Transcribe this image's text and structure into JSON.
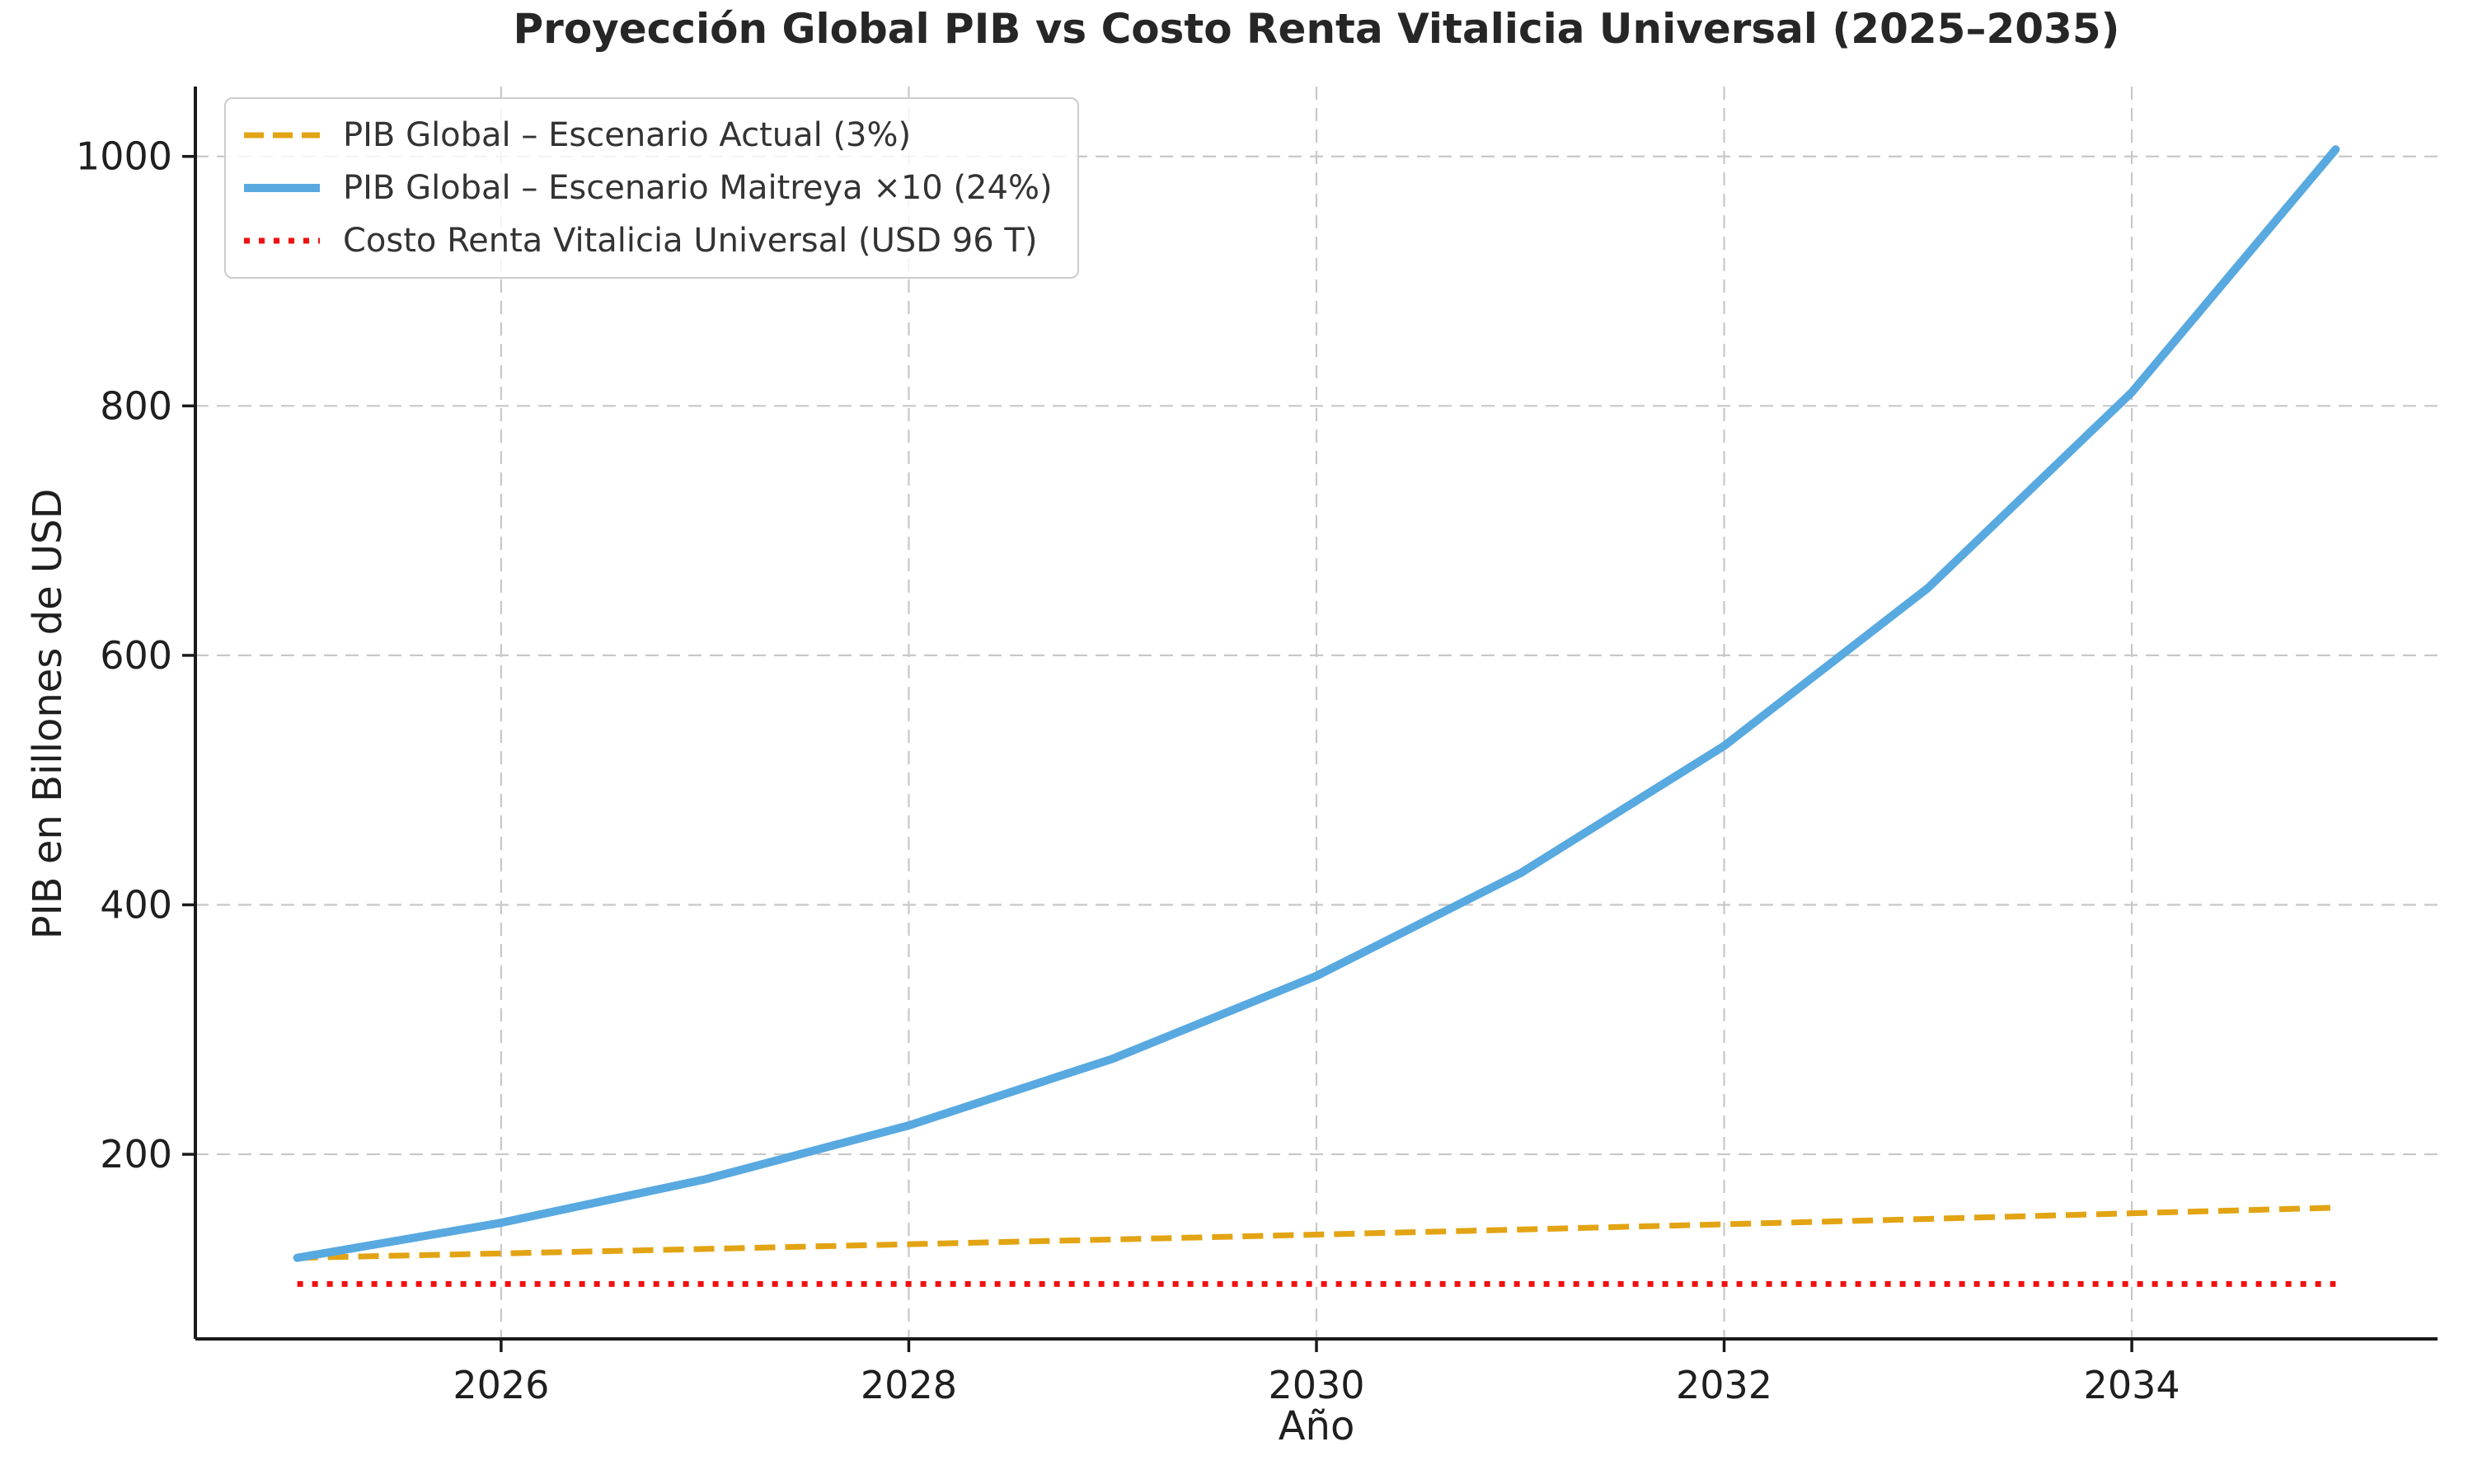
{
  "chart_data": {
    "type": "line",
    "title": "Proyección Global PIB vs Costo Renta Vitalicia Universal (2025–2035)",
    "xlabel": "Año",
    "ylabel": "PIB en Billones de USD",
    "x": [
      2025,
      2026,
      2027,
      2028,
      2029,
      2030,
      2031,
      2032,
      2033,
      2034,
      2035
    ],
    "series": [
      {
        "name": "PIB Global – Escenario Actual (3%)",
        "color": "#E2A414",
        "style": "dashed",
        "width": 7,
        "values": [
          117.0,
          120.5,
          124.1,
          127.9,
          131.7,
          135.6,
          139.7,
          143.9,
          148.2,
          152.7,
          157.2
        ]
      },
      {
        "name": "PIB Global – Escenario Maitreya ×10 (24%)",
        "color": "#58A9E0",
        "style": "solid",
        "width": 10,
        "values": [
          117.0,
          145.1,
          179.9,
          223.1,
          276.6,
          343.0,
          425.3,
          527.4,
          654.0,
          810.9,
          1005.6
        ]
      },
      {
        "name": "Costo Renta Vitalicia Universal (USD 96 T)",
        "color": "#F01010",
        "style": "dotted",
        "width": 7,
        "values": [
          96,
          96,
          96,
          96,
          96,
          96,
          96,
          96,
          96,
          96,
          96
        ]
      }
    ],
    "xticks": [
      2026,
      2028,
      2030,
      2032,
      2034
    ],
    "yticks": [
      200,
      400,
      600,
      800,
      1000
    ],
    "xlim": [
      2024.5,
      2035.5
    ],
    "ylim": [
      52,
      1056
    ],
    "grid": true,
    "grid_color": "#c8c8c8",
    "axis_color": "#1a1a1a",
    "tick_label_color": "#1f1f1f",
    "legend_position": "upper left"
  }
}
